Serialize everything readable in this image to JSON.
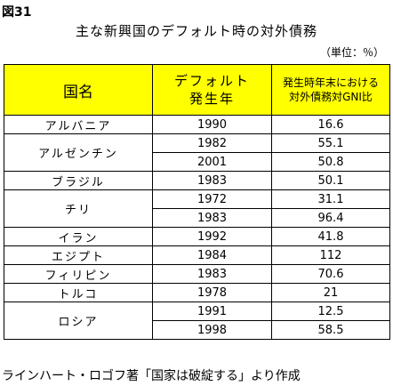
{
  "figure_label": "図31",
  "title": "主な新興国のデフォルト時の対外債務",
  "unit": "（単位：％）",
  "table": {
    "headers": {
      "country": "国名",
      "year_line1": "デフォルト",
      "year_line2": "発生年",
      "ratio_line1": "発生時年末における",
      "ratio_line2": "対外債務対GNI比"
    },
    "rows": [
      {
        "country": "アルバニア",
        "year": "1990",
        "ratio": "16.6"
      },
      {
        "country": "アルゼンチン",
        "year": "1982",
        "ratio": "55.1"
      },
      {
        "country": "アルゼンチン",
        "year": "2001",
        "ratio": "50.8"
      },
      {
        "country": "ブラジル",
        "year": "1983",
        "ratio": "50.1"
      },
      {
        "country": "チリ",
        "year": "1972",
        "ratio": "31.1"
      },
      {
        "country": "チリ",
        "year": "1983",
        "ratio": "96.4"
      },
      {
        "country": "イラン",
        "year": "1992",
        "ratio": "41.8"
      },
      {
        "country": "エジプト",
        "year": "1984",
        "ratio": "112"
      },
      {
        "country": "フィリピン",
        "year": "1983",
        "ratio": "70.6"
      },
      {
        "country": "トルコ",
        "year": "1978",
        "ratio": "21"
      },
      {
        "country": "ロシア",
        "year": "1991",
        "ratio": "12.5"
      },
      {
        "country": "ロシア",
        "year": "1998",
        "ratio": "58.5"
      }
    ]
  },
  "source": "ラインハート・ロゴフ著「国家は破綻する」より作成"
}
